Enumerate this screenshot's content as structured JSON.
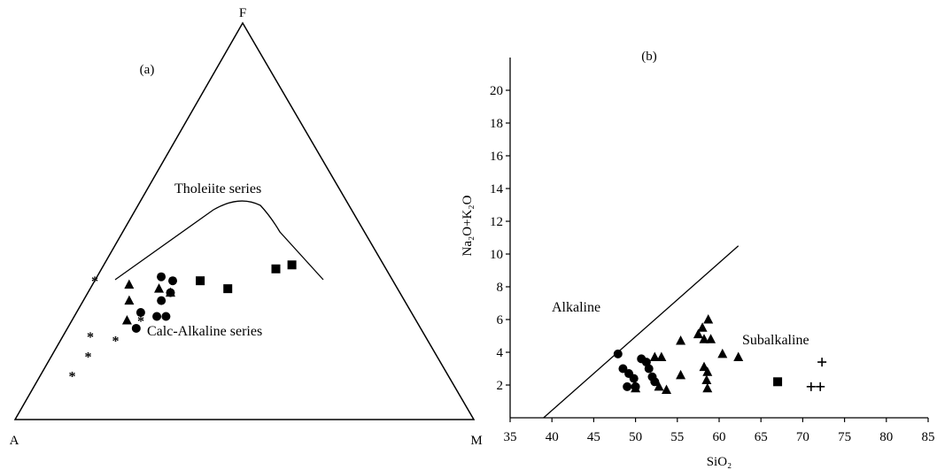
{
  "chart_data": [
    {
      "type": "scatter",
      "panel_label": "(a)",
      "diagram": "AFM ternary",
      "vertices": {
        "apex": "F",
        "left": "A",
        "right": "M"
      },
      "field_labels": {
        "upper": "Tholeiite series",
        "lower": "Calc-Alkaline series"
      },
      "boundary_curve": [
        [
          0.5,
          0.36,
          0.14
        ],
        [
          0.36,
          0.43,
          0.21
        ],
        [
          0.27,
          0.48,
          0.25
        ],
        [
          0.23,
          0.49,
          0.28
        ],
        [
          0.19,
          0.49,
          0.32
        ],
        [
          0.15,
          0.46,
          0.39
        ],
        [
          0.12,
          0.41,
          0.47
        ],
        [
          0.03,
          0.23,
          0.74
        ]
      ],
      "series": [
        {
          "marker": "asterisk",
          "points": [
            [
              0.82,
              0.11,
              0.07
            ],
            [
              0.76,
              0.16,
              0.08
            ],
            [
              0.73,
              0.21,
              0.06
            ],
            [
              0.65,
              0.35,
              0.0
            ],
            [
              0.68,
              0.2,
              0.12
            ],
            [
              0.6,
              0.25,
              0.15
            ]
          ]
        },
        {
          "marker": "triangle",
          "points": [
            [
              0.63,
              0.25,
              0.12
            ],
            [
              0.6,
              0.3,
              0.1
            ],
            [
              0.58,
              0.34,
              0.08
            ],
            [
              0.52,
              0.33,
              0.15
            ],
            [
              0.5,
              0.32,
              0.18
            ]
          ]
        },
        {
          "marker": "circle",
          "points": [
            [
              0.62,
              0.23,
              0.15
            ],
            [
              0.59,
              0.27,
              0.14
            ],
            [
              0.56,
              0.26,
              0.18
            ],
            [
              0.53,
              0.3,
              0.17
            ],
            [
              0.5,
              0.32,
              0.18
            ],
            [
              0.48,
              0.35,
              0.17
            ],
            [
              0.5,
              0.36,
              0.14
            ],
            [
              0.54,
              0.26,
              0.2
            ]
          ]
        },
        {
          "marker": "square",
          "points": [
            [
              0.42,
              0.35,
              0.23
            ],
            [
              0.37,
              0.33,
              0.3
            ],
            [
              0.24,
              0.38,
              0.38
            ],
            [
              0.2,
              0.39,
              0.41
            ]
          ]
        }
      ]
    },
    {
      "type": "scatter",
      "panel_label": "(b)",
      "xlabel": "SiO₂",
      "ylabel": "Na₂O+K₂O",
      "xlim": [
        35,
        85
      ],
      "ylim": [
        0,
        22
      ],
      "xticks": [
        "35",
        "40",
        "45",
        "50",
        "55",
        "60",
        "65",
        "70",
        "75",
        "80",
        "85"
      ],
      "yticks": [
        "2",
        "4",
        "6",
        "8",
        "10",
        "12",
        "14",
        "16",
        "18",
        "20"
      ],
      "field_labels": {
        "left": "Alkaline",
        "right": "Subalkaline"
      },
      "divider_line": [
        [
          39.0,
          0.0
        ],
        [
          62.3,
          10.5
        ]
      ],
      "series": [
        {
          "marker": "circle",
          "points": [
            [
              47.9,
              3.9
            ],
            [
              48.5,
              3.0
            ],
            [
              49.2,
              2.7
            ],
            [
              49.8,
              2.4
            ],
            [
              49.0,
              1.9
            ],
            [
              50.7,
              3.6
            ],
            [
              51.3,
              3.4
            ],
            [
              51.6,
              3.0
            ],
            [
              52.0,
              2.5
            ],
            [
              52.3,
              2.2
            ],
            [
              50.0,
              1.9
            ]
          ]
        },
        {
          "marker": "triangle",
          "points": [
            [
              50.0,
              1.8
            ],
            [
              52.3,
              3.7
            ],
            [
              53.1,
              3.7
            ],
            [
              52.8,
              1.9
            ],
            [
              53.7,
              1.7
            ],
            [
              55.4,
              4.7
            ],
            [
              55.4,
              2.6
            ],
            [
              57.5,
              5.1
            ],
            [
              58.0,
              5.5
            ],
            [
              58.7,
              6.0
            ],
            [
              58.2,
              4.8
            ],
            [
              59.0,
              4.8
            ],
            [
              60.4,
              3.9
            ],
            [
              62.3,
              3.7
            ],
            [
              58.2,
              3.1
            ],
            [
              58.6,
              2.8
            ],
            [
              58.5,
              2.3
            ],
            [
              58.6,
              1.8
            ]
          ]
        },
        {
          "marker": "square",
          "points": [
            [
              67.0,
              2.2
            ]
          ]
        },
        {
          "marker": "plus",
          "points": [
            [
              72.3,
              3.4
            ],
            [
              71.0,
              1.9
            ],
            [
              72.1,
              1.9
            ]
          ]
        }
      ]
    }
  ]
}
